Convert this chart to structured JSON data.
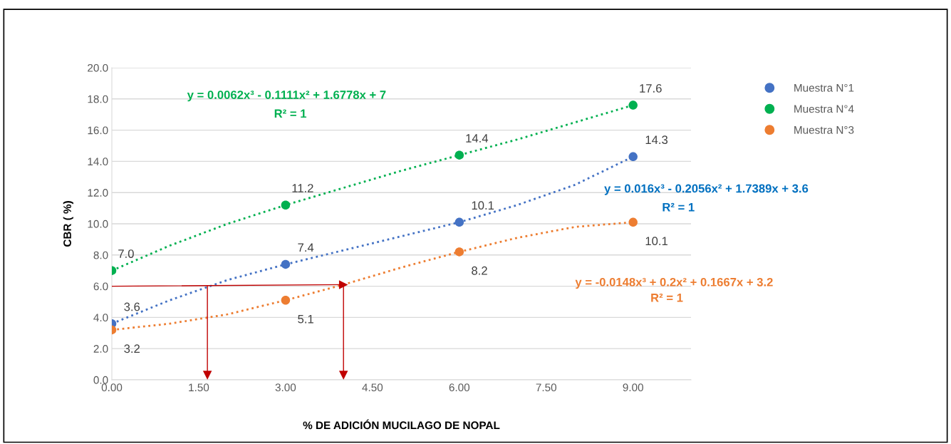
{
  "chart_data": {
    "type": "scatter",
    "xlabel": "% DE ADICIÓN MUCILAGO DE NOPAL",
    "ylabel": "CBR ( %)",
    "xlim": [
      0,
      10
    ],
    "xticks": [
      {
        "value": 0,
        "label": "0.00"
      },
      {
        "value": 1.5,
        "label": "1.50"
      },
      {
        "value": 3,
        "label": "3.00"
      },
      {
        "value": 4.5,
        "label": "4.50"
      },
      {
        "value": 6,
        "label": "6.00"
      },
      {
        "value": 7.5,
        "label": "7.50"
      },
      {
        "value": 9,
        "label": "9.00"
      }
    ],
    "ylim": [
      0,
      20
    ],
    "yticks": [
      {
        "value": 0,
        "label": "0.0"
      },
      {
        "value": 2,
        "label": "2.0"
      },
      {
        "value": 4,
        "label": "4.0"
      },
      {
        "value": 6,
        "label": "6.0"
      },
      {
        "value": 8,
        "label": "8.0"
      },
      {
        "value": 10,
        "label": "10.0"
      },
      {
        "value": 12,
        "label": "12.0"
      },
      {
        "value": 14,
        "label": "14.0"
      },
      {
        "value": 16,
        "label": "16.0"
      },
      {
        "value": 18,
        "label": "18.0"
      },
      {
        "value": 20,
        "label": "20.0"
      }
    ],
    "grid": "y",
    "legend": "top right",
    "series": [
      {
        "name": "Muestra N°1",
        "marker": "circle",
        "color": "#4472c4",
        "x": [
          0,
          3,
          6,
          9
        ],
        "values": [
          3.6,
          7.4,
          10.1,
          14.3
        ],
        "value_labels": [
          "3.6",
          "7.4",
          "10.1",
          "14.3"
        ]
      },
      {
        "name": "Muestra N°4",
        "marker": "circle",
        "color": "#00b050",
        "x": [
          0,
          3,
          6,
          9
        ],
        "values": [
          7.0,
          11.2,
          14.4,
          17.6
        ],
        "value_labels": [
          "7.0",
          "11.2",
          "14.4",
          "17.6"
        ]
      },
      {
        "name": "Muestra N°3",
        "marker": "circle",
        "color": "#ed7d31",
        "x": [
          0,
          3,
          6,
          9
        ],
        "values": [
          3.2,
          5.1,
          8.2,
          10.1
        ],
        "value_labels": [
          "3.2",
          "5.1",
          "8.2",
          "10.1"
        ]
      },
      {
        "type": "line",
        "line_style": "dotted",
        "color": "#4472c4",
        "x": [
          0,
          1,
          2,
          3,
          4,
          5,
          6,
          7,
          8,
          9
        ],
        "values": [
          3.6,
          5.1,
          6.4,
          7.4,
          8.3,
          9.2,
          10.1,
          11.2,
          12.5,
          14.3
        ]
      },
      {
        "type": "line",
        "line_style": "dotted",
        "color": "#00b050",
        "x": [
          0,
          1,
          2,
          3,
          4,
          5,
          6,
          7,
          8,
          9
        ],
        "values": [
          7.0,
          8.6,
          10.0,
          11.2,
          12.3,
          13.4,
          14.4,
          15.4,
          16.5,
          17.6
        ]
      },
      {
        "type": "line",
        "line_style": "dotted",
        "color": "#ed7d31",
        "x": [
          0,
          1,
          2,
          3,
          4,
          5,
          6,
          7,
          8,
          9
        ],
        "values": [
          3.2,
          3.6,
          4.2,
          5.1,
          6.1,
          7.2,
          8.2,
          9.1,
          9.8,
          10.1
        ]
      },
      {
        "type": "line",
        "line_style": "solid",
        "marker": "triangle",
        "color": "#c00000",
        "x": [
          0,
          4.0
        ],
        "values": [
          6.0,
          6.1
        ]
      },
      {
        "type": "line",
        "line_style": "solid",
        "marker": "triangle",
        "color": "#c00000",
        "x": [
          1.65,
          1.65
        ],
        "values": [
          6.0,
          0.3
        ]
      },
      {
        "type": "line",
        "line_style": "solid",
        "marker": "triangle",
        "color": "#c00000",
        "x": [
          4.0,
          4.0
        ],
        "values": [
          6.1,
          0.3
        ]
      }
    ],
    "annotations": [
      "y = 0.0062x³ - 0.1111x² + 1.6778x + 7",
      "R² = 1",
      "y = 0.016x³ - 0.2056x² + 1.7389x + 3.6",
      "R² = 1",
      "y = -0.0148x³ + 0.2x² + 0.1667x + 3.2",
      "R² = 1"
    ]
  }
}
